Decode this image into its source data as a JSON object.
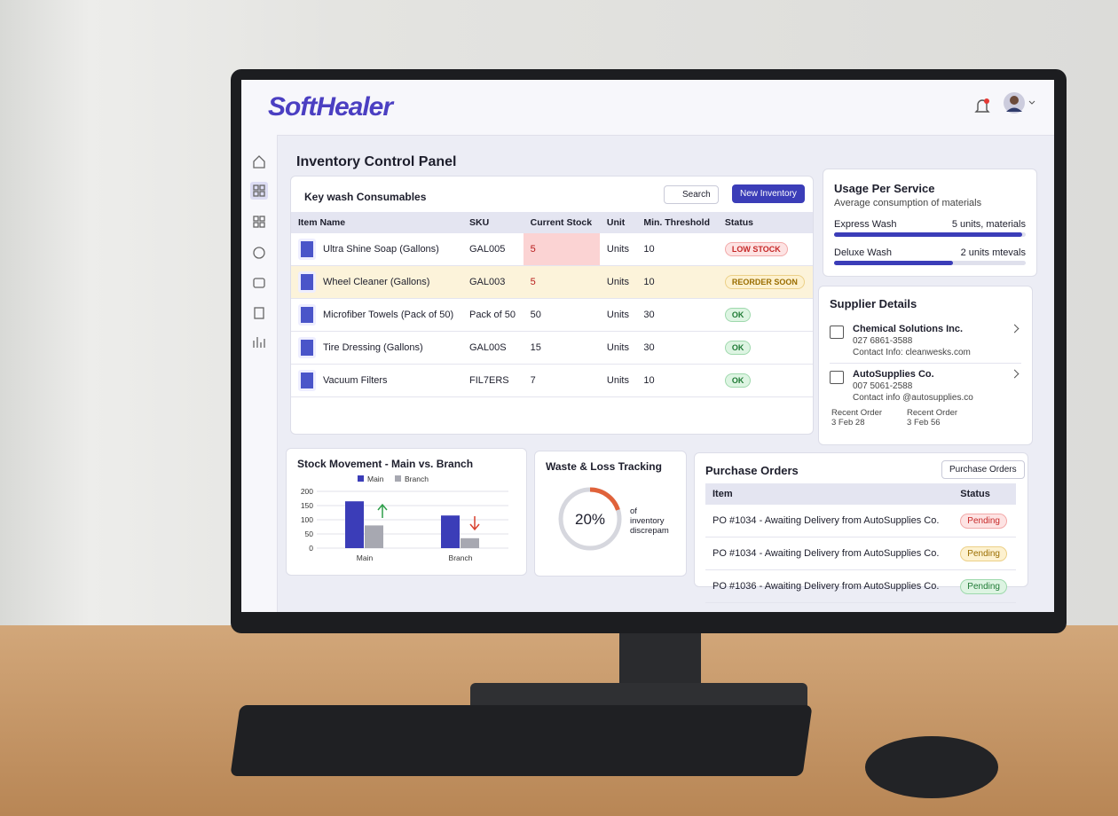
{
  "header": {
    "logo": "SoftHealer"
  },
  "page_title": "Inventory Control Panel",
  "inventory": {
    "title": "Key wash Consumables",
    "search": "Search",
    "new_button": "New Inventory",
    "columns": [
      "Item Name",
      "SKU",
      "Current Stock",
      "Unit",
      "Min. Threshold",
      "Status"
    ],
    "rows": [
      {
        "cells": [
          "Ultra Shine Soap (Gallons)",
          "GAL005",
          5,
          "Units",
          10
        ],
        "status": "LOW STOCK",
        "tone": "danger"
      },
      {
        "cells": [
          "Wheel Cleaner (Gallons)",
          "GAL003",
          5,
          "Units",
          10
        ],
        "status": "REORDER SOON",
        "tone": "warning"
      },
      {
        "cells": [
          "Microfiber Towels (Pack of 50)",
          "Pack of 50",
          50,
          "Units",
          30
        ],
        "status": "OK",
        "tone": "ok"
      },
      {
        "cells": [
          "Tire Dressing (Gallons)",
          "GAL00S",
          15,
          "Units",
          30
        ],
        "status": "OK",
        "tone": "ok"
      },
      {
        "cells": [
          "Vacuum Filters",
          "FIL7ERS",
          7,
          "Units",
          10
        ],
        "status": "OK",
        "tone": "ok"
      }
    ]
  },
  "usage": {
    "title": "Usage Per Service",
    "subtitle": "Average consumption of materials",
    "items": [
      {
        "name": "Express Wash",
        "amount": "5 units, materials",
        "level": 98
      },
      {
        "name": "Deluxe Wash",
        "amount": "2 units mtevals",
        "level": 62
      }
    ]
  },
  "suppliers": {
    "title": "Supplier Details",
    "items": [
      {
        "name": "Chemical Solutions Inc.",
        "phone": "027 6861-3588",
        "contact": "Contact Info: cleanwesks.com"
      },
      {
        "name": "AutoSupplies Co.",
        "phone": "007 5061-2588",
        "contact": "Contact info @autosupplies.co",
        "recent": [
          {
            "label": "Recent Order",
            "date": "3 Feb 28"
          },
          {
            "label": "Recent Order",
            "date": "3 Feb 56"
          }
        ]
      }
    ]
  },
  "stock_movement": {
    "title": "Stock Movement - Main vs. Branch",
    "type": "bar",
    "categories": [
      "Main",
      "Branch"
    ],
    "series": [
      {
        "name": "Main",
        "color": "#3b3db8",
        "values": [
          165,
          115
        ]
      },
      {
        "name": "Branch",
        "color": "#a7a8b1",
        "values": [
          80,
          35
        ]
      }
    ],
    "ylim": [
      0,
      200
    ],
    "yticks": [
      0,
      50,
      100,
      150,
      200
    ],
    "grid": true
  },
  "waste": {
    "title": "Waste & Loss Tracking",
    "value": 20,
    "value_label": "20%",
    "caption": "of inventory discrepam",
    "color": "#e0623a"
  },
  "purchase_orders": {
    "title": "Purchase Orders",
    "button": "Purchase Orders",
    "columns": [
      "Item",
      "Status"
    ],
    "rows": [
      {
        "item": "PO #1034 - Awaiting Delivery from AutoSupplies Co.",
        "status": "Pending",
        "tone": "danger"
      },
      {
        "item": "PO #1034 - Awaiting Delivery from AutoSupplies Co.",
        "status": "Pending",
        "tone": "warning"
      },
      {
        "item": "PO #1036 - Awaiting Delivery from AutoSupplies Co.",
        "status": "Pending",
        "tone": "ok"
      }
    ]
  }
}
